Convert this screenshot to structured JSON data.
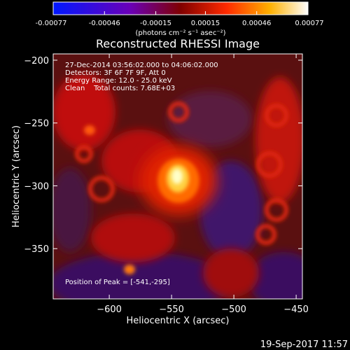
{
  "colorbar": {
    "ticks": [
      "-0.00077",
      "-0.00046",
      "-0.00015",
      "0.00015",
      "0.00046",
      "0.00077"
    ],
    "range": [
      -0.00077,
      0.00077
    ],
    "unit_label": "(photons cm⁻² s⁻¹ asec⁻²)",
    "colors": [
      "#0018ff",
      "#6a00b8",
      "#800000",
      "#ff2a00",
      "#ffb000",
      "#ffffff"
    ]
  },
  "chart_data": {
    "type": "heatmap",
    "title": "Reconstructed RHESSI Image",
    "xlabel": "Heliocentric X (arcsec)",
    "ylabel": "Heliocentric Y (arcsec)",
    "xlim": [
      -645,
      -445
    ],
    "ylim": [
      -390,
      -195
    ],
    "xticks": [
      -600,
      -550,
      -500,
      -450
    ],
    "yticks": [
      -200,
      -250,
      -300,
      -350
    ],
    "xtick_labels": [
      "−600",
      "−550",
      "−500",
      "−450"
    ],
    "ytick_labels": [
      "−200",
      "−250",
      "−300",
      "−350"
    ],
    "peak": {
      "x": -541,
      "y": -295
    },
    "annotations": {
      "time": "27-Dec-2014 03:56:02.000 to 04:06:02.000",
      "detectors": "Detectors: 3F 6F 7F 9F, Att 0",
      "energy": "Energy Range: 12.0 - 25.0 keV",
      "clean": "Clean    Total counts: 7.68E+03",
      "peak_text": "Position of Peak = [-541,-295]"
    }
  },
  "footer": {
    "timestamp": "19-Sep-2017 11:57"
  }
}
